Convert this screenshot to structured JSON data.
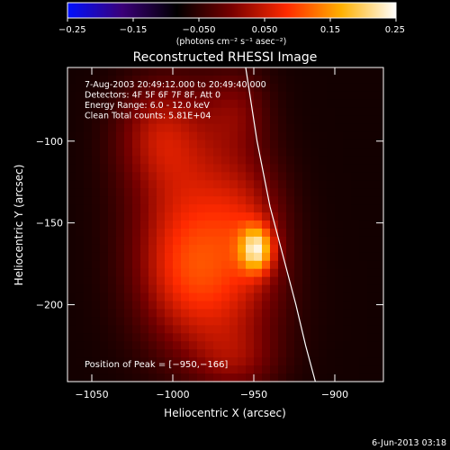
{
  "chart_data": {
    "type": "heatmap",
    "title": "Reconstructed RHESSI Image",
    "xlabel": "Heliocentric X (arcsec)",
    "ylabel": "Heliocentric Y (arcsec)",
    "xlim": [
      -1065,
      -870
    ],
    "ylim": [
      -247,
      -55
    ],
    "xticks": [
      -1050,
      -1000,
      -950,
      -900
    ],
    "yticks": [
      -100,
      -150,
      -200
    ],
    "xtick_labels": [
      "−1050",
      "−1000",
      "−950",
      "−900"
    ],
    "ytick_labels": [
      "−100",
      "−150",
      "−200"
    ],
    "colorbar": {
      "min": -0.25,
      "max": 0.25,
      "ticks": [
        -0.25,
        -0.15,
        -0.05,
        0.05,
        0.15,
        0.25
      ],
      "tick_labels": [
        "−0.25",
        "−0.15",
        "−0.050",
        "0.050",
        "0.15",
        "0.25"
      ],
      "label": "(photons cm⁻² s⁻¹ asec⁻²)",
      "colors": [
        "#0010ff",
        "#3a0078",
        "#000000",
        "#780000",
        "#ff2a00",
        "#ffb000",
        "#ffffff"
      ]
    },
    "annotations": [
      " 7-Aug-2003 20:49:12.000 to 20:49:40.000",
      "Detectors: 4F 5F 6F 7F 8F, Att 0",
      "Energy Range: 6.0 - 12.0 keV",
      "Clean    Total counts: 5.81E+04"
    ],
    "peak_label": "Position of Peak = [−950,−166]",
    "peak": [
      -950,
      -166
    ],
    "limb": [
      [
        -955,
        -55
      ],
      [
        -948,
        -100
      ],
      [
        -940,
        -140
      ],
      [
        -932,
        -170
      ],
      [
        -924,
        -200
      ],
      [
        -918,
        -225
      ],
      [
        -912,
        -247
      ]
    ],
    "blobs": [
      {
        "x": -948,
        "y": -166,
        "sx": 7,
        "sy": 10,
        "amp": 0.19
      },
      {
        "x": -955,
        "y": -155,
        "sx": 18,
        "sy": 30,
        "amp": 0.09
      },
      {
        "x": -990,
        "y": -135,
        "sx": 26,
        "sy": 45,
        "amp": 0.1
      },
      {
        "x": -1010,
        "y": -95,
        "sx": 18,
        "sy": 22,
        "amp": 0.07
      },
      {
        "x": -975,
        "y": -205,
        "sx": 28,
        "sy": 28,
        "amp": 0.08
      },
      {
        "x": -995,
        "y": -175,
        "sx": 20,
        "sy": 25,
        "amp": 0.06
      },
      {
        "x": -960,
        "y": -235,
        "sx": 18,
        "sy": 14,
        "amp": 0.05
      },
      {
        "x": -960,
        "y": -80,
        "sx": 14,
        "sy": 18,
        "amp": 0.05
      }
    ],
    "background": -0.07
  },
  "footer_date": "6-Jun-2013 03:18"
}
